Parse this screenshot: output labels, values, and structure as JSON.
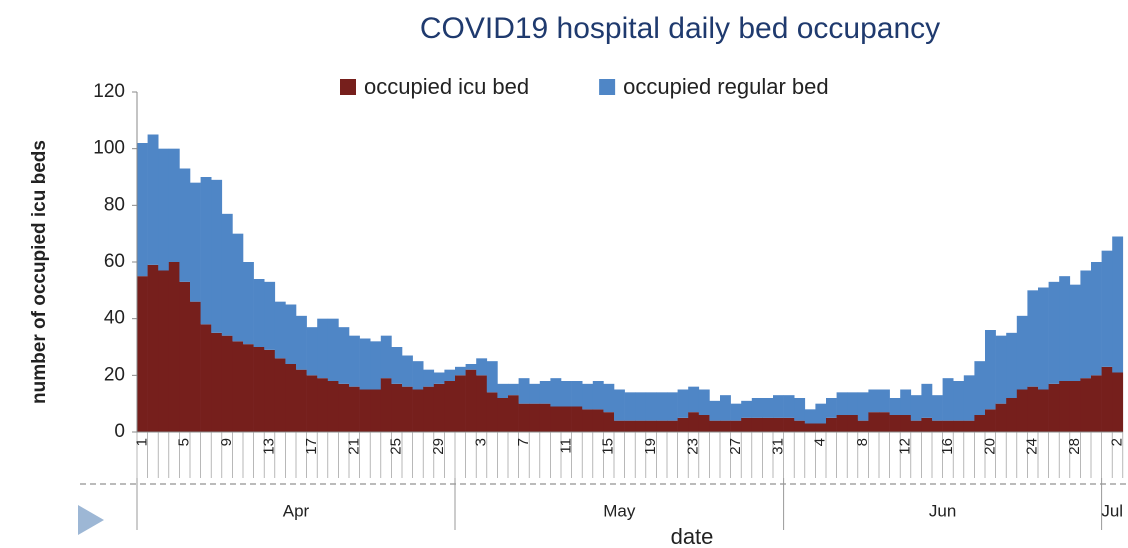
{
  "chart_data": {
    "type": "stacked_bar",
    "title": "COVID19 hospital daily bed occupancy",
    "y_label": "number of occupied icu beds",
    "x_label": "date",
    "categories": [
      "1",
      null,
      null,
      null,
      "5",
      null,
      null,
      null,
      "9",
      null,
      null,
      null,
      "13",
      null,
      null,
      null,
      "17",
      null,
      null,
      null,
      "21",
      null,
      null,
      null,
      "25",
      null,
      null,
      null,
      "29",
      null,
      null,
      null,
      "3",
      null,
      null,
      null,
      "7",
      null,
      null,
      null,
      "11",
      null,
      null,
      null,
      "15",
      null,
      null,
      null,
      "19",
      null,
      null,
      null,
      "23",
      null,
      null,
      null,
      "27",
      null,
      null,
      null,
      "31",
      null,
      null,
      null,
      "4",
      null,
      null,
      null,
      "8",
      null,
      null,
      null,
      "12",
      null,
      null,
      null,
      "16",
      null,
      null,
      null,
      "20",
      null,
      null,
      null,
      "24",
      null,
      null,
      null,
      "28",
      null,
      null,
      null,
      "2"
    ],
    "x_groups": [
      "Apr",
      "May",
      "Jun",
      "Jul"
    ],
    "series": [
      {
        "name": "occupied icu bed",
        "color": "#761f1c",
        "values": [
          55,
          59,
          57,
          60,
          53,
          46,
          38,
          35,
          34,
          32,
          31,
          30,
          29,
          26,
          24,
          22,
          20,
          19,
          18,
          17,
          16,
          15,
          15,
          19,
          17,
          16,
          15,
          16,
          17,
          18,
          20,
          22,
          20,
          14,
          12,
          13,
          10,
          10,
          10,
          9,
          9,
          9,
          8,
          8,
          7,
          4,
          4,
          4,
          4,
          4,
          4,
          5,
          7,
          6,
          4,
          4,
          4,
          5,
          5,
          5,
          5,
          5,
          4,
          3,
          3,
          5,
          6,
          6,
          4,
          7,
          7,
          6,
          6,
          4,
          5,
          4,
          4,
          4,
          4,
          6,
          8,
          10,
          12,
          15,
          16,
          15,
          17,
          18,
          18,
          19,
          20,
          23,
          21
        ]
      },
      {
        "name": "occupied regular bed",
        "color": "#4f86c6",
        "values": [
          47,
          46,
          43,
          40,
          40,
          42,
          52,
          54,
          43,
          38,
          29,
          24,
          24,
          20,
          21,
          19,
          17,
          21,
          22,
          20,
          18,
          18,
          17,
          15,
          13,
          11,
          10,
          6,
          4,
          4,
          3,
          2,
          6,
          11,
          5,
          4,
          9,
          7,
          8,
          10,
          9,
          9,
          9,
          10,
          10,
          11,
          10,
          10,
          10,
          10,
          10,
          10,
          9,
          9,
          7,
          9,
          6,
          6,
          7,
          7,
          8,
          8,
          8,
          5,
          7,
          7,
          8,
          8,
          10,
          8,
          8,
          6,
          9,
          9,
          12,
          9,
          15,
          14,
          16,
          19,
          28,
          24,
          23,
          26,
          34,
          36,
          36,
          37,
          34,
          38,
          40,
          41,
          48
        ]
      }
    ],
    "ylim": [
      0,
      120
    ],
    "yticks": [
      0,
      20,
      40,
      60,
      80,
      100,
      120
    ],
    "grid": false,
    "legend": "top"
  }
}
